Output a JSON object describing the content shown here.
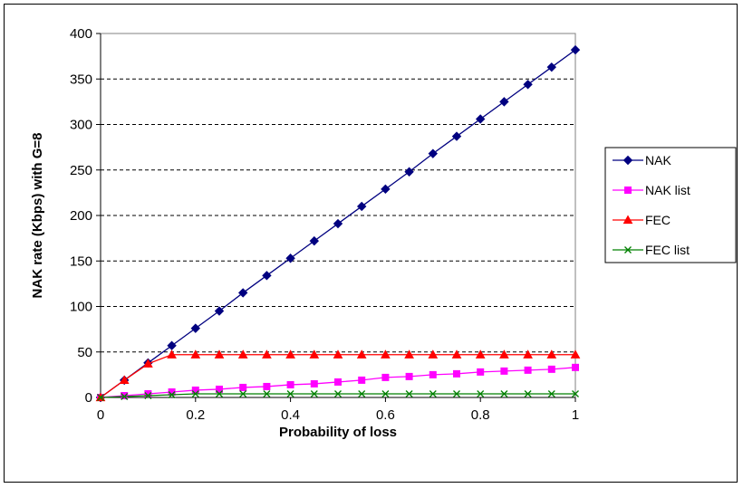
{
  "chart_data": {
    "type": "line",
    "xlabel": "Probability of loss",
    "ylabel": "NAK rate (Kbps) with G=8",
    "xlim": [
      0,
      1
    ],
    "ylim": [
      0,
      400
    ],
    "xticks": [
      0,
      0.2,
      0.4,
      0.6,
      0.8,
      1
    ],
    "xtick_labels": [
      "0",
      "0.2",
      "0.4",
      "0.6",
      "0.8",
      "1"
    ],
    "yticks": [
      0,
      50,
      100,
      150,
      200,
      250,
      300,
      350,
      400
    ],
    "ytick_labels": [
      "0",
      "50",
      "100",
      "150",
      "200",
      "250",
      "300",
      "350",
      "400"
    ],
    "grid": "horizontal-dashed",
    "legend_position": "right",
    "x": [
      0,
      0.05,
      0.1,
      0.15,
      0.2,
      0.25,
      0.3,
      0.35,
      0.4,
      0.45,
      0.5,
      0.55,
      0.6,
      0.65,
      0.7,
      0.75,
      0.8,
      0.85,
      0.9,
      0.95,
      1
    ],
    "series": [
      {
        "name": "NAK",
        "color": "#000080",
        "marker": "diamond",
        "values": [
          0,
          19,
          38,
          57,
          76,
          95,
          115,
          134,
          153,
          172,
          191,
          210,
          229,
          248,
          268,
          287,
          306,
          325,
          344,
          363,
          382
        ]
      },
      {
        "name": "NAK list",
        "color": "#FF00FF",
        "marker": "square",
        "values": [
          0,
          2,
          4,
          6,
          8,
          9,
          11,
          12,
          14,
          15,
          17,
          19,
          22,
          23,
          25,
          26,
          28,
          29,
          30,
          31,
          33
        ]
      },
      {
        "name": "FEC",
        "color": "#FF0000",
        "marker": "triangle",
        "values": [
          0,
          19,
          37,
          47,
          47,
          47,
          47,
          47,
          47,
          47,
          47,
          47,
          47,
          47,
          47,
          47,
          47,
          47,
          47,
          47,
          47
        ]
      },
      {
        "name": "FEC list",
        "color": "#008000",
        "marker": "x",
        "values": [
          0,
          1,
          2,
          3,
          4,
          4,
          4,
          4,
          4,
          4,
          4,
          4,
          4,
          4,
          4,
          4,
          4,
          4,
          4,
          4,
          4
        ]
      }
    ]
  }
}
